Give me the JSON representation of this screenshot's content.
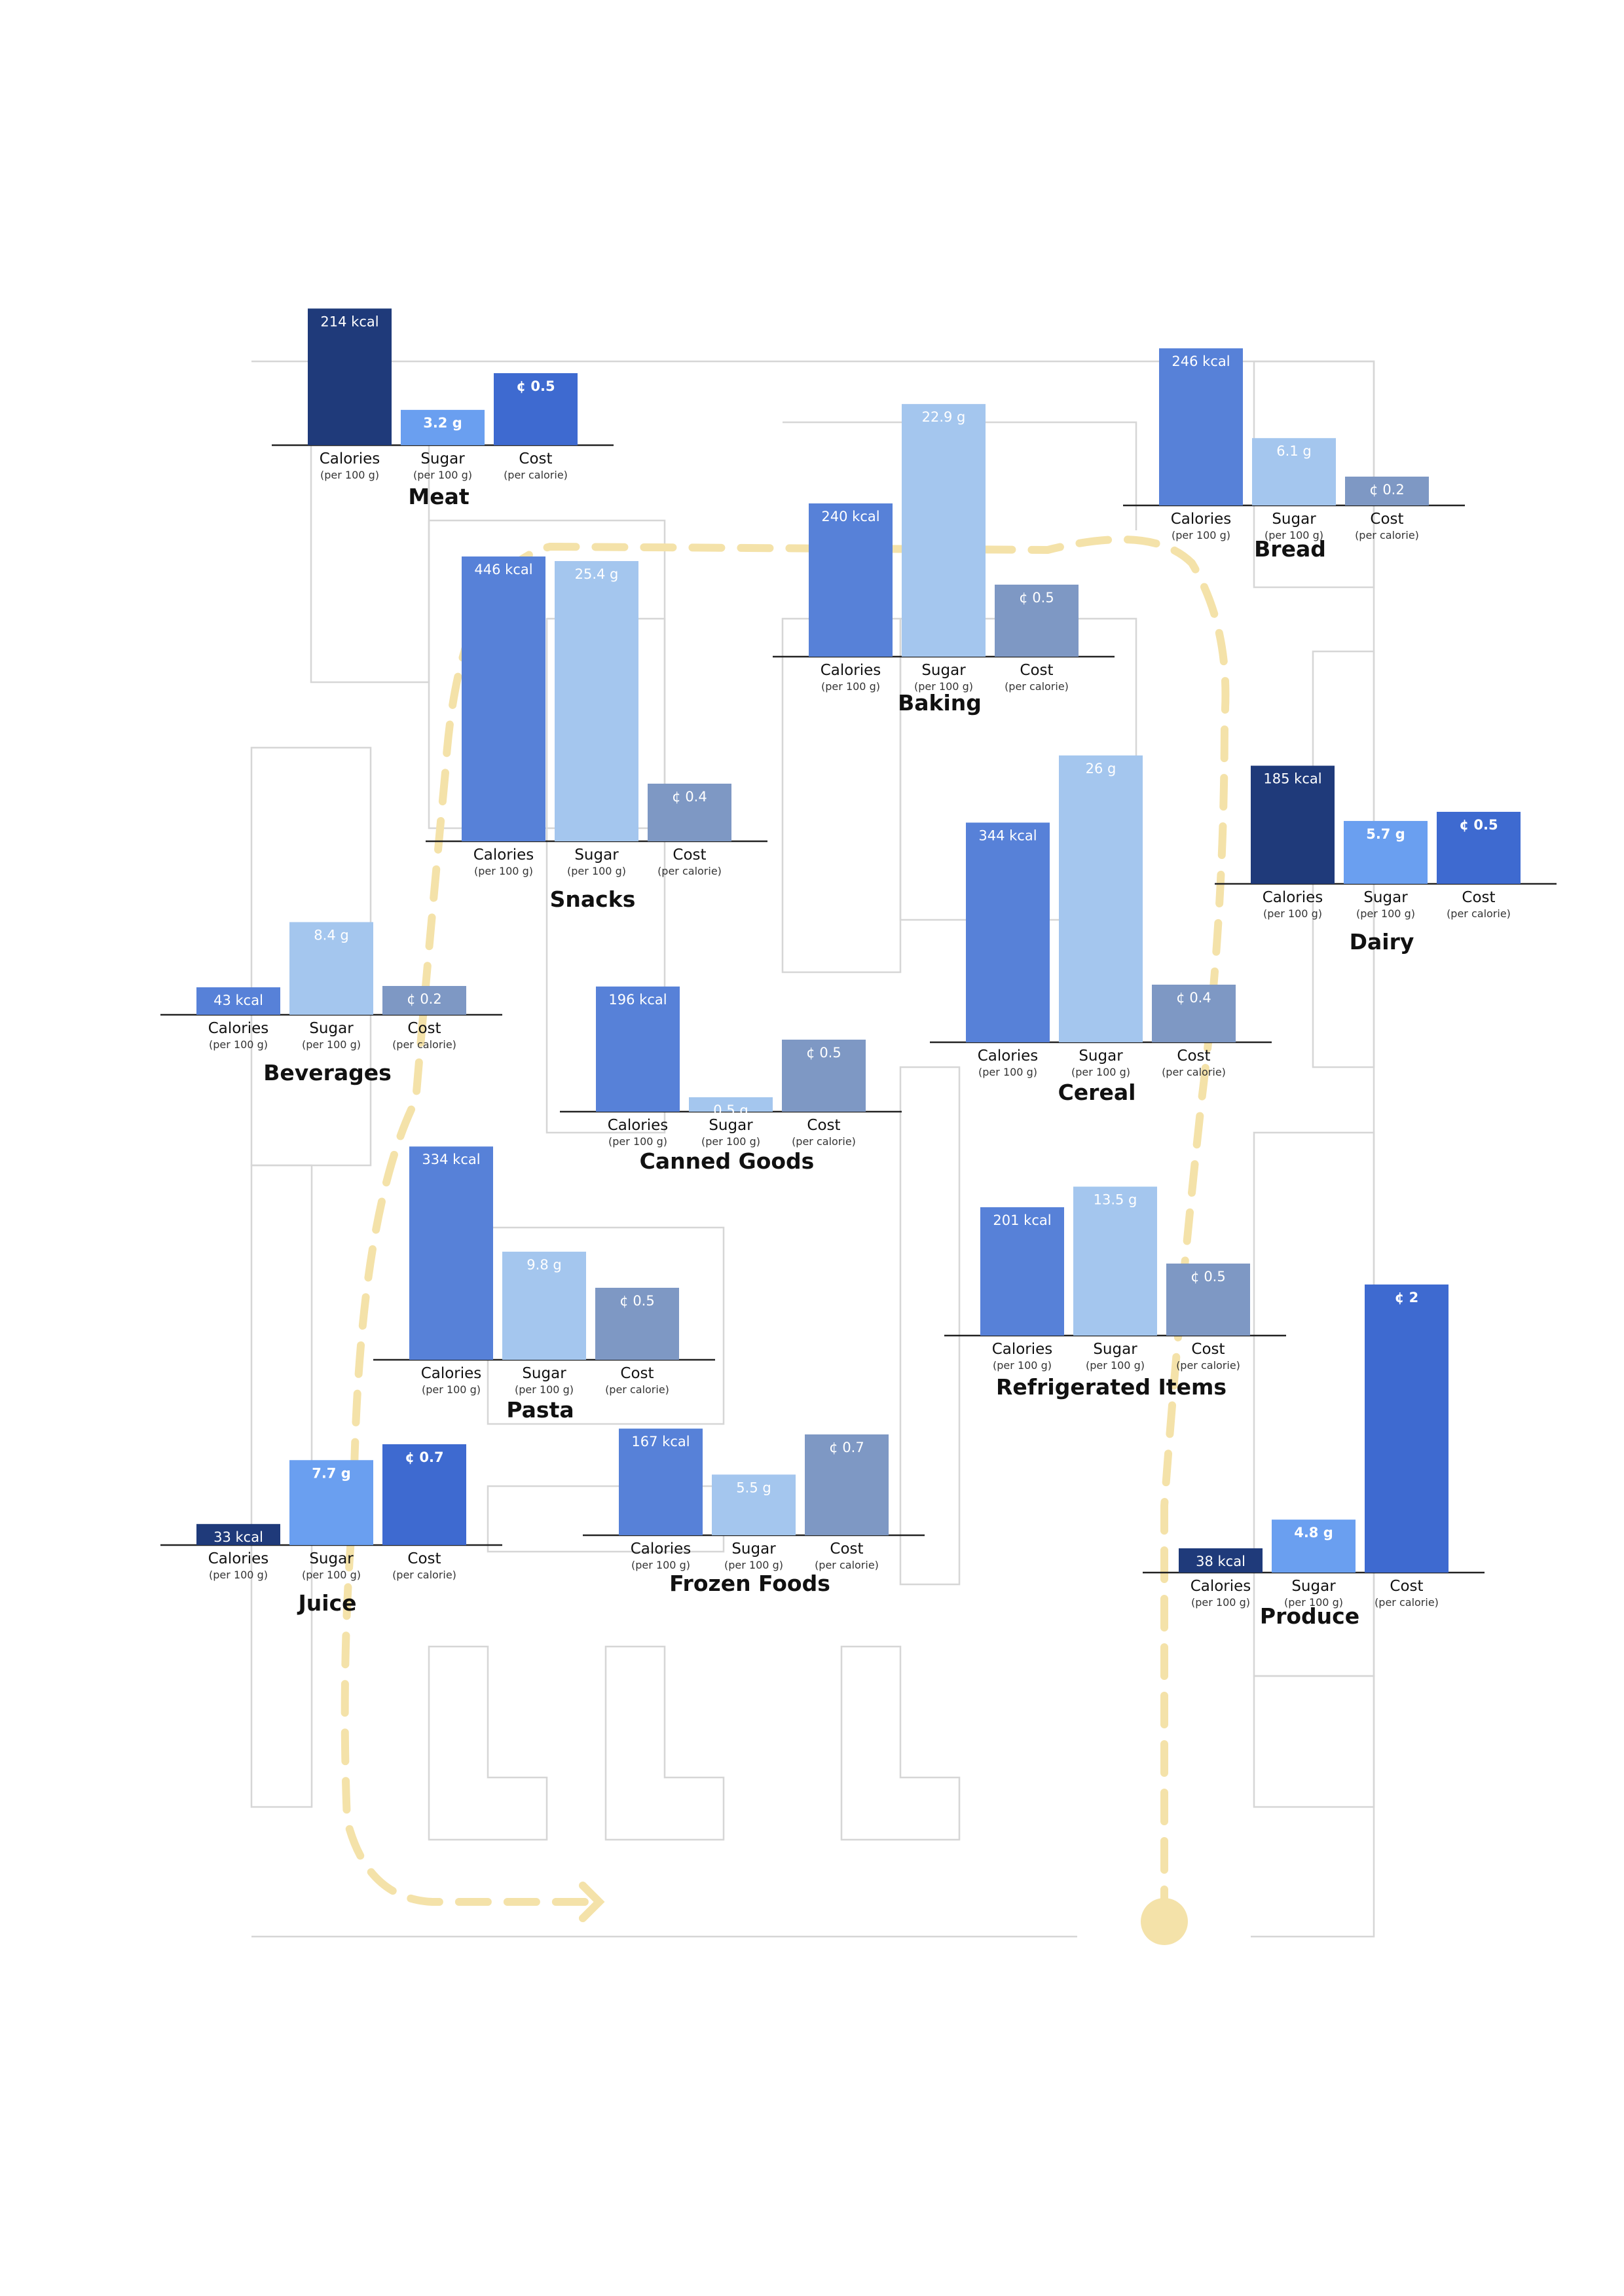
{
  "chart_data": {
    "type": "bar",
    "title": "",
    "xlabel": "",
    "ylabel": "",
    "grid": false,
    "legend": "none",
    "categories": [
      "Calories",
      "Sugar",
      "Cost"
    ],
    "category_units": [
      "(per 100 g)",
      "(per 100 g)",
      "(per calorie)"
    ],
    "value_units": [
      "kcal",
      "g",
      "¢"
    ],
    "colors": {
      "calories_dark": "#1f3a7a",
      "calories_mid": "#5781d8",
      "sugar_light": "#a4c6ee",
      "sugar_mid": "#6a9ff0",
      "cost_grey": "#7e98c4",
      "cost_bright": "#3e6ad0",
      "route": "#f4e2a9",
      "floorplan": "#d6d6d6"
    },
    "sections": [
      {
        "name": "Meat",
        "values": [
          214,
          3.2,
          0.5
        ],
        "labels": [
          "214 kcal",
          "3.2 g",
          "¢ 0.5"
        ]
      },
      {
        "name": "Bread",
        "values": [
          246,
          6.1,
          0.2
        ],
        "labels": [
          "246 kcal",
          "6.1 g",
          "¢ 0.2"
        ]
      },
      {
        "name": "Baking",
        "values": [
          240,
          22.9,
          0.5
        ],
        "labels": [
          "240 kcal",
          "22.9 g",
          "¢ 0.5"
        ]
      },
      {
        "name": "Snacks",
        "values": [
          446,
          25.4,
          0.4
        ],
        "labels": [
          "446 kcal",
          "25.4 g",
          "¢ 0.4"
        ]
      },
      {
        "name": "Dairy",
        "values": [
          185,
          5.7,
          0.5
        ],
        "labels": [
          "185 kcal",
          "5.7 g",
          "¢ 0.5"
        ]
      },
      {
        "name": "Cereal",
        "values": [
          344,
          26,
          0.4
        ],
        "labels": [
          "344 kcal",
          "26 g",
          "¢ 0.4"
        ]
      },
      {
        "name": "Beverages",
        "values": [
          43,
          8.4,
          0.2
        ],
        "labels": [
          "43 kcal",
          "8.4 g",
          "¢ 0.2"
        ]
      },
      {
        "name": "Canned Goods",
        "values": [
          196,
          0.5,
          0.5
        ],
        "labels": [
          "196 kcal",
          "0.5 g",
          "¢ 0.5"
        ]
      },
      {
        "name": "Pasta",
        "values": [
          334,
          9.8,
          0.5
        ],
        "labels": [
          "334 kcal",
          "9.8 g",
          "¢ 0.5"
        ]
      },
      {
        "name": "Refrigerated Items",
        "values": [
          201,
          13.5,
          0.5
        ],
        "labels": [
          "201 kcal",
          "13.5 g",
          "¢ 0.5"
        ]
      },
      {
        "name": "Juice",
        "values": [
          33,
          7.7,
          0.7
        ],
        "labels": [
          "33 kcal",
          "7.7 g",
          "¢ 0.7"
        ]
      },
      {
        "name": "Frozen Foods",
        "values": [
          167,
          5.5,
          0.7
        ],
        "labels": [
          "167 kcal",
          "5.5 g",
          "¢ 0.7"
        ]
      },
      {
        "name": "Produce",
        "values": [
          38,
          4.8,
          2
        ],
        "labels": [
          "38 kcal",
          "4.8 g",
          "¢ 2"
        ]
      }
    ]
  }
}
